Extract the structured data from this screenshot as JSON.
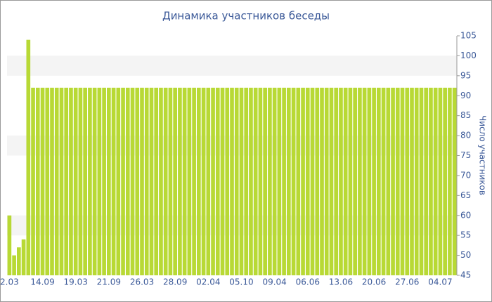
{
  "chart_data": {
    "type": "bar",
    "title": "Динамика участников беседы",
    "y_label": "Число участников",
    "categories": [
      "2.03",
      null,
      null,
      null,
      null,
      null,
      null,
      "14.09",
      null,
      null,
      null,
      null,
      null,
      null,
      "19.03",
      null,
      null,
      null,
      null,
      null,
      null,
      "21.09",
      null,
      null,
      null,
      null,
      null,
      null,
      "26.03",
      null,
      null,
      null,
      null,
      null,
      null,
      "28.09",
      null,
      null,
      null,
      null,
      null,
      null,
      "02.04",
      null,
      null,
      null,
      null,
      null,
      null,
      "05.10",
      null,
      null,
      null,
      null,
      null,
      null,
      "09.04",
      null,
      null,
      null,
      null,
      null,
      null,
      "06.06",
      null,
      null,
      null,
      null,
      null,
      null,
      "13.06",
      null,
      null,
      null,
      null,
      null,
      null,
      "20.06",
      null,
      null,
      null,
      null,
      null,
      null,
      "27.06",
      null,
      null,
      null,
      null,
      null,
      null,
      "04.07",
      null,
      null,
      null
    ],
    "values": [
      60,
      50,
      52,
      54,
      104,
      92,
      92,
      92,
      92,
      92,
      92,
      92,
      92,
      92,
      92,
      92,
      92,
      92,
      92,
      92,
      92,
      92,
      92,
      92,
      92,
      92,
      92,
      92,
      92,
      92,
      92,
      92,
      92,
      92,
      92,
      92,
      92,
      92,
      92,
      92,
      92,
      92,
      92,
      92,
      92,
      92,
      92,
      92,
      92,
      92,
      92,
      92,
      92,
      92,
      92,
      92,
      92,
      92,
      92,
      92,
      92,
      92,
      92,
      92,
      92,
      92,
      92,
      92,
      92,
      92,
      92,
      92,
      92,
      92,
      92,
      92,
      92,
      92,
      92,
      92,
      92,
      92,
      92,
      92,
      92,
      92,
      92,
      92,
      92,
      92,
      92,
      92,
      92,
      92,
      92
    ],
    "color": "#b8d935",
    "ylim": [
      45,
      105
    ],
    "yticks": [
      45,
      50,
      55,
      60,
      65,
      70,
      75,
      80,
      85,
      90,
      95,
      100,
      105
    ],
    "grid": true
  }
}
